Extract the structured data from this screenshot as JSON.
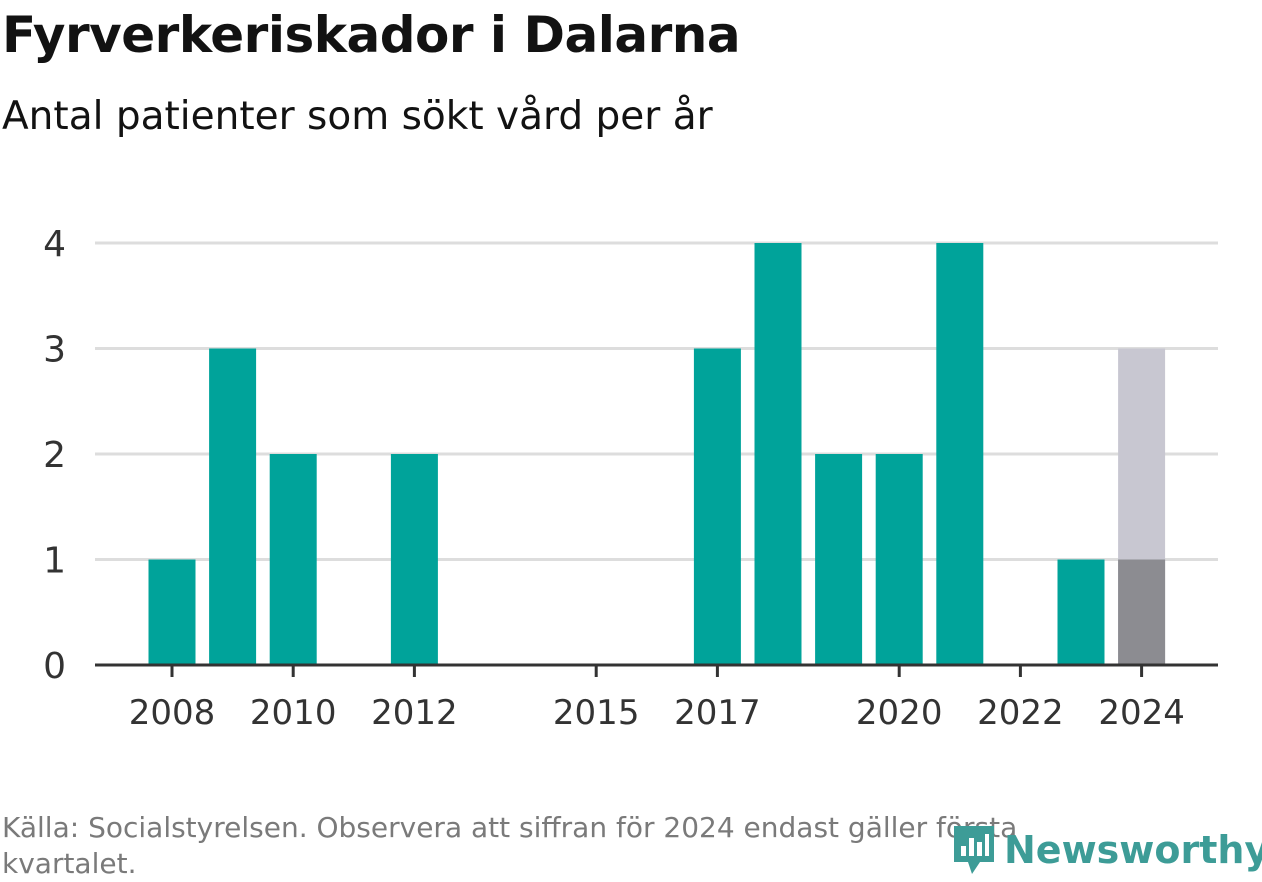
{
  "header": {
    "title": "Fyrverkeriskador i Dalarna",
    "subtitle": "Antal patienter som sökt vård per år"
  },
  "footer": {
    "source": "Källa: Socialstyrelsen. Observera att siffran för 2024 endast gäller första kvartalet.",
    "brand": "Newsworthy"
  },
  "colors": {
    "bar": "#00a39a",
    "projection": "#c8c7d1",
    "partial": "#8c8c91",
    "grid": "#dddddd",
    "axis": "#333333",
    "brand": "#3d9c97"
  },
  "chart_data": {
    "type": "bar",
    "x": [
      2008,
      2009,
      2010,
      2011,
      2012,
      2013,
      2014,
      2015,
      2016,
      2017,
      2018,
      2019,
      2020,
      2021,
      2022,
      2023,
      2024
    ],
    "values": [
      1,
      3,
      2,
      0,
      2,
      0,
      0,
      0,
      0,
      3,
      4,
      2,
      2,
      4,
      0,
      1,
      1
    ],
    "projection": {
      "x": 2024,
      "value": 3
    },
    "xticks": [
      2008,
      2010,
      2012,
      2015,
      2017,
      2020,
      2022,
      2024
    ],
    "yticks": [
      0,
      1,
      2,
      3,
      4
    ],
    "ylim": [
      0,
      4
    ],
    "grid": true
  }
}
